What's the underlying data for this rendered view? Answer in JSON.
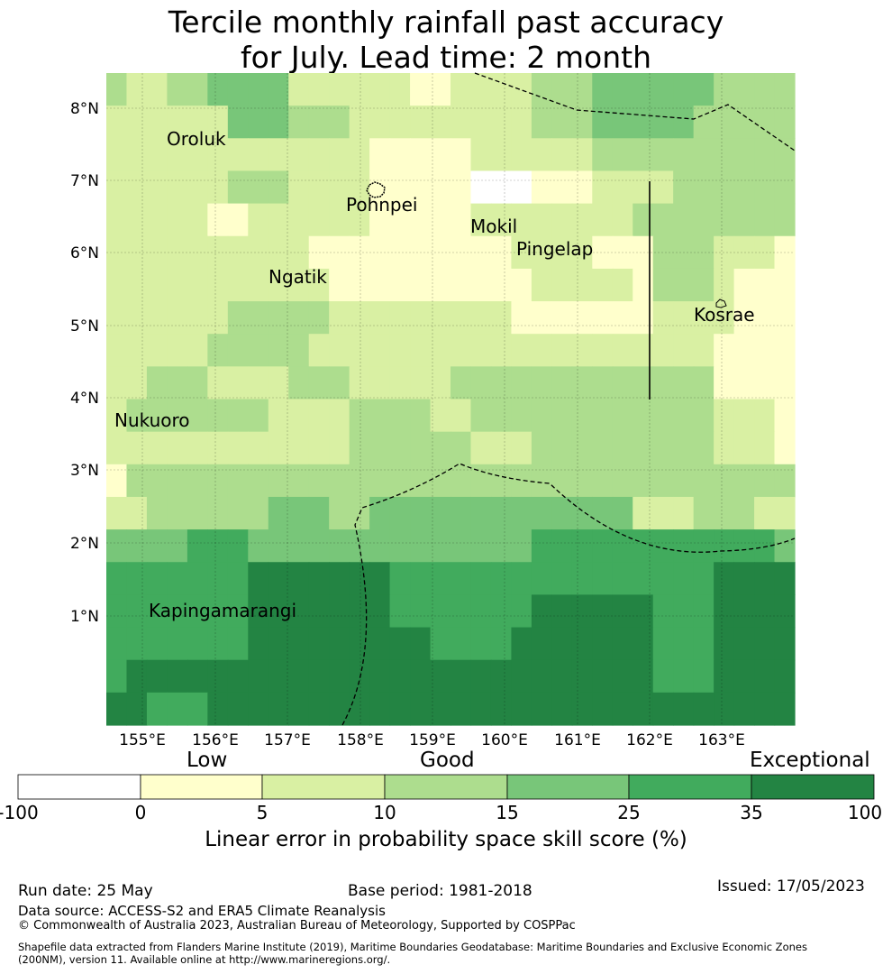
{
  "title": {
    "line1": "Tercile monthly rainfall past accuracy",
    "line2": "for July. Lead time: 2 month"
  },
  "map": {
    "lon_ticks": [
      "155°E",
      "156°E",
      "157°E",
      "158°E",
      "159°E",
      "160°E",
      "161°E",
      "162°E",
      "163°E"
    ],
    "lat_ticks": [
      "8°N",
      "7°N",
      "6°N",
      "5°N",
      "4°N",
      "3°N",
      "2°N",
      "1°N"
    ],
    "places": [
      "Oroluk",
      "Pohnpei",
      "Mokil",
      "Pingelap",
      "Ngatik",
      "Kosrae",
      "Nukuoro",
      "Kapingamarangi"
    ],
    "grid_skill_classes": [
      [
        3,
        2,
        2,
        3,
        3,
        4,
        4,
        4,
        4,
        2,
        2,
        2,
        2,
        2,
        2,
        1,
        1,
        2,
        2,
        2,
        2,
        3,
        3,
        3,
        4,
        4,
        4,
        4,
        4,
        4,
        3,
        3,
        3,
        3
      ],
      [
        2,
        2,
        2,
        2,
        2,
        2,
        4,
        4,
        4,
        3,
        3,
        3,
        2,
        2,
        2,
        2,
        2,
        2,
        2,
        2,
        2,
        3,
        3,
        3,
        4,
        4,
        4,
        4,
        4,
        3,
        3,
        3,
        3,
        3
      ],
      [
        2,
        2,
        2,
        2,
        2,
        2,
        2,
        2,
        2,
        2,
        2,
        2,
        2,
        1,
        1,
        1,
        1,
        1,
        2,
        2,
        2,
        2,
        2,
        2,
        3,
        3,
        3,
        3,
        3,
        3,
        3,
        3,
        3,
        3
      ],
      [
        2,
        2,
        2,
        2,
        2,
        2,
        3,
        3,
        3,
        2,
        2,
        2,
        2,
        1,
        1,
        1,
        1,
        1,
        0,
        0,
        0,
        1,
        1,
        1,
        2,
        2,
        2,
        2,
        3,
        3,
        3,
        3,
        3,
        3
      ],
      [
        2,
        2,
        2,
        2,
        2,
        1,
        1,
        2,
        2,
        2,
        2,
        2,
        2,
        1,
        1,
        1,
        1,
        1,
        2,
        2,
        2,
        2,
        2,
        2,
        2,
        2,
        3,
        3,
        3,
        3,
        3,
        3,
        3,
        3
      ],
      [
        2,
        2,
        2,
        2,
        2,
        2,
        2,
        2,
        2,
        2,
        1,
        1,
        1,
        1,
        1,
        1,
        1,
        1,
        1,
        1,
        2,
        2,
        2,
        2,
        1,
        1,
        1,
        3,
        3,
        3,
        2,
        2,
        2,
        1
      ],
      [
        2,
        2,
        2,
        2,
        2,
        2,
        2,
        2,
        2,
        2,
        2,
        1,
        1,
        1,
        1,
        1,
        1,
        1,
        1,
        1,
        1,
        2,
        2,
        2,
        2,
        2,
        1,
        3,
        3,
        3,
        2,
        1,
        1,
        1
      ],
      [
        2,
        2,
        2,
        2,
        2,
        2,
        3,
        3,
        3,
        3,
        3,
        2,
        2,
        2,
        2,
        2,
        2,
        2,
        2,
        2,
        1,
        1,
        1,
        1,
        1,
        1,
        1,
        2,
        2,
        2,
        2,
        1,
        1,
        1
      ],
      [
        2,
        2,
        2,
        2,
        2,
        3,
        3,
        3,
        3,
        3,
        2,
        2,
        2,
        2,
        2,
        2,
        2,
        2,
        2,
        2,
        2,
        2,
        2,
        2,
        2,
        2,
        2,
        2,
        2,
        2,
        1,
        1,
        1,
        1
      ],
      [
        2,
        2,
        3,
        3,
        3,
        2,
        2,
        2,
        2,
        3,
        3,
        3,
        2,
        2,
        2,
        2,
        2,
        3,
        3,
        3,
        3,
        3,
        3,
        3,
        3,
        3,
        3,
        3,
        3,
        3,
        1,
        1,
        1,
        1
      ],
      [
        2,
        3,
        3,
        3,
        3,
        3,
        3,
        3,
        2,
        2,
        2,
        2,
        3,
        3,
        3,
        3,
        2,
        2,
        3,
        3,
        3,
        3,
        3,
        3,
        3,
        3,
        3,
        3,
        3,
        3,
        2,
        2,
        2,
        1
      ],
      [
        2,
        2,
        2,
        2,
        2,
        2,
        2,
        2,
        2,
        2,
        2,
        2,
        3,
        3,
        3,
        3,
        3,
        3,
        2,
        2,
        2,
        3,
        3,
        3,
        3,
        3,
        3,
        3,
        3,
        3,
        2,
        2,
        2,
        1
      ],
      [
        1,
        3,
        3,
        3,
        3,
        3,
        3,
        3,
        3,
        3,
        3,
        3,
        3,
        3,
        3,
        3,
        3,
        3,
        3,
        3,
        3,
        3,
        3,
        3,
        3,
        3,
        3,
        3,
        3,
        3,
        3,
        3,
        3,
        3
      ],
      [
        2,
        2,
        3,
        3,
        3,
        3,
        3,
        3,
        4,
        4,
        4,
        3,
        3,
        4,
        4,
        4,
        4,
        4,
        4,
        4,
        4,
        4,
        4,
        4,
        4,
        4,
        2,
        2,
        2,
        3,
        3,
        3,
        2,
        2
      ],
      [
        4,
        4,
        4,
        4,
        5,
        5,
        5,
        4,
        4,
        4,
        4,
        4,
        4,
        4,
        4,
        4,
        4,
        4,
        4,
        4,
        4,
        5,
        5,
        5,
        5,
        5,
        5,
        5,
        5,
        5,
        5,
        5,
        5,
        4
      ],
      [
        5,
        5,
        5,
        5,
        5,
        5,
        5,
        6,
        6,
        6,
        6,
        6,
        6,
        6,
        5,
        5,
        5,
        5,
        5,
        5,
        5,
        5,
        5,
        5,
        5,
        5,
        5,
        5,
        5,
        5,
        6,
        6,
        6,
        6
      ],
      [
        5,
        5,
        5,
        5,
        5,
        5,
        5,
        6,
        6,
        6,
        6,
        6,
        6,
        6,
        5,
        5,
        5,
        5,
        5,
        5,
        5,
        6,
        6,
        6,
        6,
        6,
        6,
        5,
        5,
        5,
        6,
        6,
        6,
        6
      ],
      [
        5,
        5,
        5,
        5,
        5,
        5,
        5,
        6,
        6,
        6,
        6,
        6,
        6,
        6,
        6,
        6,
        5,
        5,
        5,
        5,
        6,
        6,
        6,
        6,
        6,
        6,
        6,
        5,
        5,
        5,
        6,
        6,
        6,
        6
      ],
      [
        5,
        6,
        6,
        6,
        6,
        6,
        6,
        6,
        6,
        6,
        6,
        6,
        6,
        6,
        6,
        6,
        6,
        6,
        6,
        6,
        6,
        6,
        6,
        6,
        6,
        6,
        6,
        5,
        5,
        5,
        6,
        6,
        6,
        6
      ],
      [
        6,
        6,
        5,
        5,
        5,
        6,
        6,
        6,
        6,
        6,
        6,
        6,
        6,
        6,
        6,
        6,
        6,
        6,
        6,
        6,
        6,
        6,
        6,
        6,
        6,
        6,
        6,
        6,
        6,
        6,
        6,
        6,
        6,
        6
      ]
    ]
  },
  "colorbar": {
    "categories": [
      "Low",
      "Good",
      "Exceptional"
    ],
    "ticks": [
      "-100",
      "0",
      "5",
      "10",
      "15",
      "25",
      "35",
      "100"
    ],
    "colors": [
      "#ffffff",
      "#ffffcc",
      "#d9f0a3",
      "#addd8e",
      "#78c679",
      "#41ab5d",
      "#238443"
    ],
    "label": "Linear error in probability space skill score (%)"
  },
  "footer": {
    "run_date": "Run date: 25 May",
    "base_period": "Base period: 1981-2018",
    "issued": "Issued: 17/05/2023",
    "data_source": "Data source: ACCESS-S2 and ERA5 Climate Reanalysis",
    "copyright": "© Commonwealth of Australia 2023, Australian Bureau of Meteorology, Supported by COSPPac",
    "shapefile_line1": "Shapefile data extracted from Flanders Marine Institute (2019), Maritime Boundaries Geodatabase: Maritime Boundaries and Exclusive Economic Zones",
    "shapefile_line2": "(200NM), version 11. Available online at http://www.marineregions.org/."
  }
}
